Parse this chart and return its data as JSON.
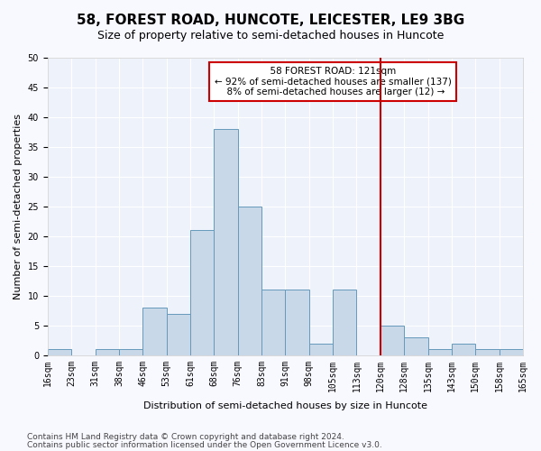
{
  "title": "58, FOREST ROAD, HUNCOTE, LEICESTER, LE9 3BG",
  "subtitle": "Size of property relative to semi-detached houses in Huncote",
  "xlabel": "Distribution of semi-detached houses by size in Huncote",
  "ylabel": "Number of semi-detached properties",
  "footer1": "Contains HM Land Registry data © Crown copyright and database right 2024.",
  "footer2": "Contains public sector information licensed under the Open Government Licence v3.0.",
  "bin_labels": [
    "16sqm",
    "23sqm",
    "31sqm",
    "38sqm",
    "46sqm",
    "53sqm",
    "61sqm",
    "68sqm",
    "76sqm",
    "83sqm",
    "91sqm",
    "98sqm",
    "105sqm",
    "113sqm",
    "120sqm",
    "128sqm",
    "135sqm",
    "143sqm",
    "150sqm",
    "158sqm",
    "165sqm"
  ],
  "bar_values": [
    1,
    0,
    1,
    1,
    8,
    7,
    21,
    38,
    25,
    11,
    11,
    2,
    11,
    0,
    5,
    3,
    1,
    2,
    1,
    1
  ],
  "bar_color": "#c8d8e8",
  "bar_edge_color": "#6699bb",
  "vline_x": 14,
  "vline_color": "#cc0000",
  "vline_label": "58 FOREST ROAD: 121sqm",
  "pct_smaller": "92% of semi-detached houses are smaller (137)",
  "pct_larger": "8% of semi-detached houses are larger (12)",
  "annotation_box_color": "#cc0000",
  "ylim": [
    0,
    50
  ],
  "yticks": [
    0,
    5,
    10,
    15,
    20,
    25,
    30,
    35,
    40,
    45,
    50
  ],
  "bg_color": "#eef2fb",
  "grid_color": "#ffffff",
  "title_fontsize": 11,
  "subtitle_fontsize": 9,
  "axis_label_fontsize": 8,
  "tick_fontsize": 7,
  "footer_fontsize": 6.5
}
